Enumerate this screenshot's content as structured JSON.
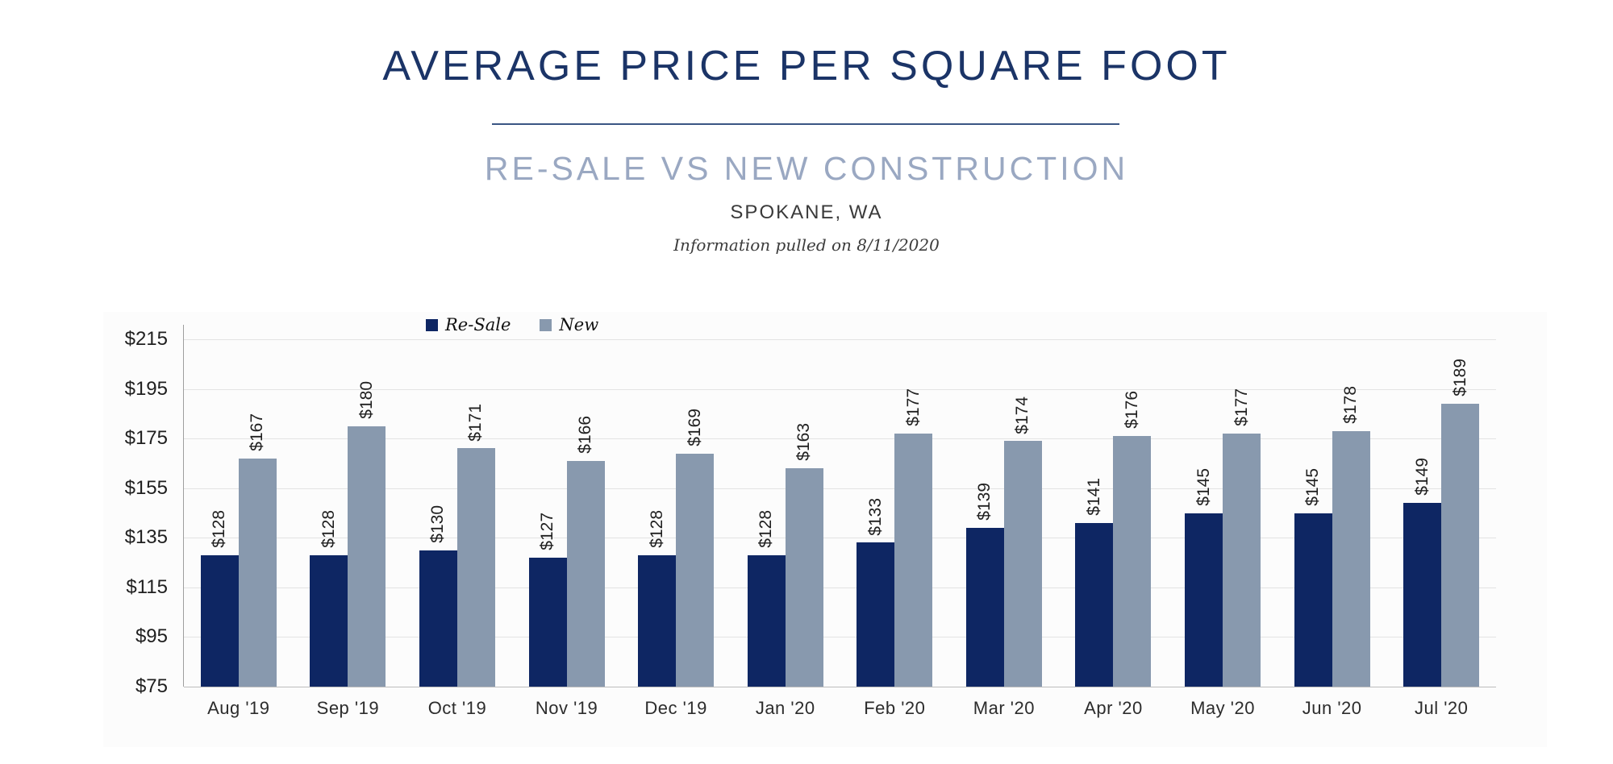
{
  "header": {
    "title": "AVERAGE PRICE PER SQUARE FOOT",
    "subtitle": "RE-SALE VS NEW CONSTRUCTION",
    "location": "SPOKANE, WA",
    "note": "Information pulled on 8/11/2020"
  },
  "colors": {
    "title_navy": "#1b3467",
    "subtitle_blue": "#9aa8c2",
    "resale_navy": "#0e2663",
    "new_gray": "#8899ae",
    "gridline": "#e3e3e3",
    "axis_line": "#9e9e9e"
  },
  "chart_data": {
    "type": "bar",
    "title": "AVERAGE PRICE PER SQUARE FOOT",
    "subtitle": "RE-SALE VS NEW CONSTRUCTION — SPOKANE, WA",
    "categories": [
      "Aug '19",
      "Sep '19",
      "Oct '19",
      "Nov '19",
      "Dec '19",
      "Jan '20",
      "Feb '20",
      "Mar '20",
      "Apr '20",
      "May '20",
      "Jun '20",
      "Jul '20"
    ],
    "series": [
      {
        "name": "Re-Sale",
        "color": "#0e2663",
        "values": [
          128,
          128,
          130,
          127,
          128,
          128,
          133,
          139,
          141,
          145,
          145,
          149
        ]
      },
      {
        "name": "New",
        "color": "#8899ae",
        "values": [
          167,
          180,
          171,
          166,
          169,
          163,
          177,
          174,
          176,
          177,
          178,
          189
        ]
      }
    ],
    "ylim": [
      75,
      215
    ],
    "ytick_step": 20,
    "ytick_prefix": "$",
    "value_prefix": "$",
    "grid": true,
    "legend_position": "top-center"
  }
}
